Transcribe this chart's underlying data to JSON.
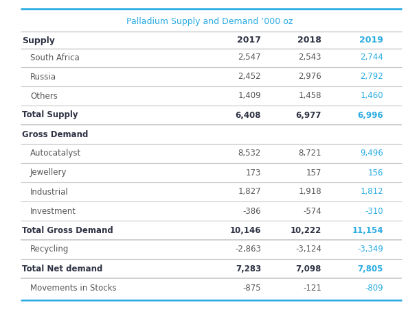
{
  "title": "Palladium Supply and Demand ’000 oz",
  "title_color": "#29ABE2",
  "background_color": "#FFFFFF",
  "rows": [
    {
      "label": "Supply",
      "bold": true,
      "header": true,
      "data": [
        "",
        "",
        ""
      ],
      "label_color": "#2D3142",
      "value_colors": [
        "#2D3142",
        "#2D3142",
        "#29ABE2"
      ],
      "line_below": true,
      "line_bold": false
    },
    {
      "label": "South Africa",
      "bold": false,
      "header": false,
      "data": [
        "2,547",
        "2,543",
        "2,744"
      ],
      "label_color": "#555555",
      "value_colors": [
        "#555555",
        "#555555",
        "#29ABE2"
      ],
      "line_below": true,
      "line_bold": false
    },
    {
      "label": "Russia",
      "bold": false,
      "header": false,
      "data": [
        "2,452",
        "2,976",
        "2,792"
      ],
      "label_color": "#555555",
      "value_colors": [
        "#555555",
        "#555555",
        "#29ABE2"
      ],
      "line_below": true,
      "line_bold": false
    },
    {
      "label": "Others",
      "bold": false,
      "header": false,
      "data": [
        "1,409",
        "1,458",
        "1,460"
      ],
      "label_color": "#555555",
      "value_colors": [
        "#555555",
        "#555555",
        "#29ABE2"
      ],
      "line_below": true,
      "line_bold": false
    },
    {
      "label": "Total Supply",
      "bold": true,
      "header": false,
      "data": [
        "6,408",
        "6,977",
        "6,996"
      ],
      "label_color": "#2D3142",
      "value_colors": [
        "#2D3142",
        "#2D3142",
        "#29ABE2"
      ],
      "line_below": true,
      "line_bold": true
    },
    {
      "label": "Gross Demand",
      "bold": true,
      "header": true,
      "data": [
        "",
        "",
        ""
      ],
      "label_color": "#2D3142",
      "value_colors": [
        "#2D3142",
        "#2D3142",
        "#29ABE2"
      ],
      "line_below": true,
      "line_bold": false
    },
    {
      "label": "Autocatalyst",
      "bold": false,
      "header": false,
      "data": [
        "8,532",
        "8,721",
        "9,496"
      ],
      "label_color": "#555555",
      "value_colors": [
        "#555555",
        "#555555",
        "#29ABE2"
      ],
      "line_below": true,
      "line_bold": false
    },
    {
      "label": "Jewellery",
      "bold": false,
      "header": false,
      "data": [
        "173",
        "157",
        "156"
      ],
      "label_color": "#555555",
      "value_colors": [
        "#555555",
        "#555555",
        "#29ABE2"
      ],
      "line_below": true,
      "line_bold": false
    },
    {
      "label": "Industrial",
      "bold": false,
      "header": false,
      "data": [
        "1,827",
        "1,918",
        "1,812"
      ],
      "label_color": "#555555",
      "value_colors": [
        "#555555",
        "#555555",
        "#29ABE2"
      ],
      "line_below": true,
      "line_bold": false
    },
    {
      "label": "Investment",
      "bold": false,
      "header": false,
      "data": [
        "-386",
        "-574",
        "-310"
      ],
      "label_color": "#555555",
      "value_colors": [
        "#555555",
        "#555555",
        "#29ABE2"
      ],
      "line_below": true,
      "line_bold": false
    },
    {
      "label": "Total Gross Demand",
      "bold": true,
      "header": false,
      "data": [
        "10,146",
        "10,222",
        "11,154"
      ],
      "label_color": "#2D3142",
      "value_colors": [
        "#2D3142",
        "#2D3142",
        "#29ABE2"
      ],
      "line_below": true,
      "line_bold": true
    },
    {
      "label": "Recycling",
      "bold": false,
      "header": false,
      "data": [
        "-2,863",
        "-3,124",
        "-3,349"
      ],
      "label_color": "#555555",
      "value_colors": [
        "#555555",
        "#555555",
        "#29ABE2"
      ],
      "line_below": true,
      "line_bold": false
    },
    {
      "label": "Total Net demand",
      "bold": true,
      "header": false,
      "data": [
        "7,283",
        "7,098",
        "7,805"
      ],
      "label_color": "#2D3142",
      "value_colors": [
        "#2D3142",
        "#2D3142",
        "#29ABE2"
      ],
      "line_below": true,
      "line_bold": true
    },
    {
      "label": "Movements in Stocks",
      "bold": false,
      "header": false,
      "data": [
        "-875",
        "-121",
        "-809"
      ],
      "label_color": "#555555",
      "value_colors": [
        "#555555",
        "#555555",
        "#29ABE2"
      ],
      "line_below": false,
      "line_bold": false
    }
  ],
  "col_years": [
    "2017",
    "2018",
    "2019"
  ],
  "col_year_colors": [
    "#2D3142",
    "#2D3142",
    "#29ABE2"
  ],
  "line_color": "#C8C8C8",
  "top_line_color": "#29ABE2",
  "fig_width": 6.1,
  "fig_height": 4.83,
  "dpi": 100
}
